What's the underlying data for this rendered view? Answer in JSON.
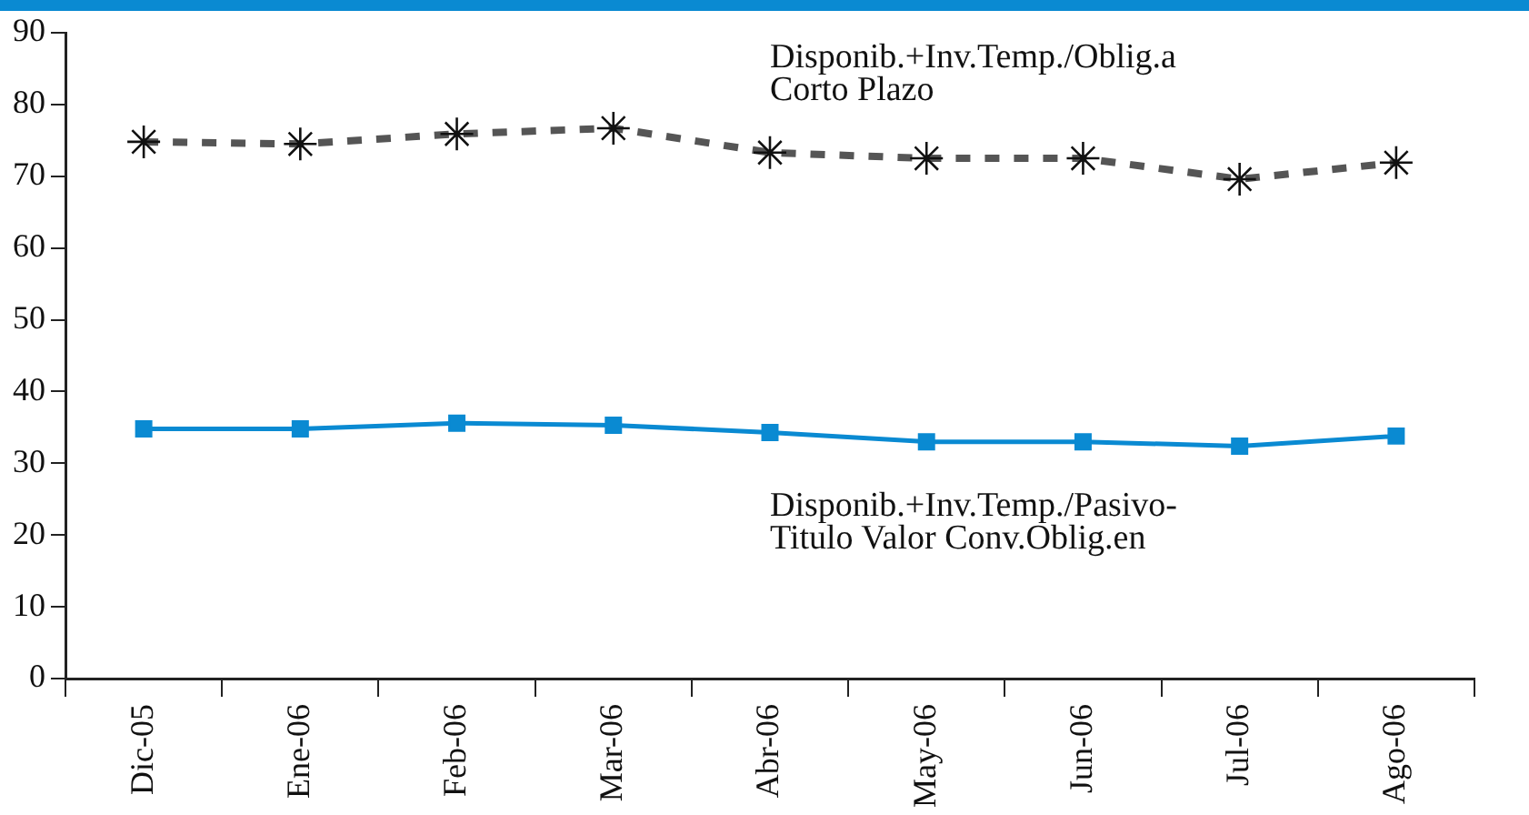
{
  "chart_data": {
    "type": "line",
    "categories": [
      "Dic-05",
      "Ene-06",
      "Feb-06",
      "Mar-06",
      "Abr-06",
      "May-06",
      "Jun-06",
      "Jul-06",
      "Ago-06"
    ],
    "series": [
      {
        "name": "Disponib.+Inv.Temp./Oblig.a Corto Plazo",
        "color": "#555555",
        "marker": "cross",
        "line_style": "dashed",
        "values": [
          74.8,
          74.5,
          75.9,
          76.7,
          73.3,
          72.5,
          72.5,
          69.6,
          71.9
        ]
      },
      {
        "name": "Disponib.+Inv.Temp./Pasivo-Titulo Valor Conv.Oblig.en",
        "color": "#0a8ad2",
        "marker": "square",
        "line_style": "solid",
        "values": [
          34.8,
          34.8,
          35.6,
          35.3,
          34.3,
          33.0,
          33.0,
          32.4,
          33.8
        ]
      }
    ],
    "ylim": [
      0,
      90
    ],
    "yticks": [
      0,
      10,
      20,
      30,
      40,
      50,
      60,
      70,
      80,
      90
    ],
    "grid": false,
    "legend": false
  }
}
